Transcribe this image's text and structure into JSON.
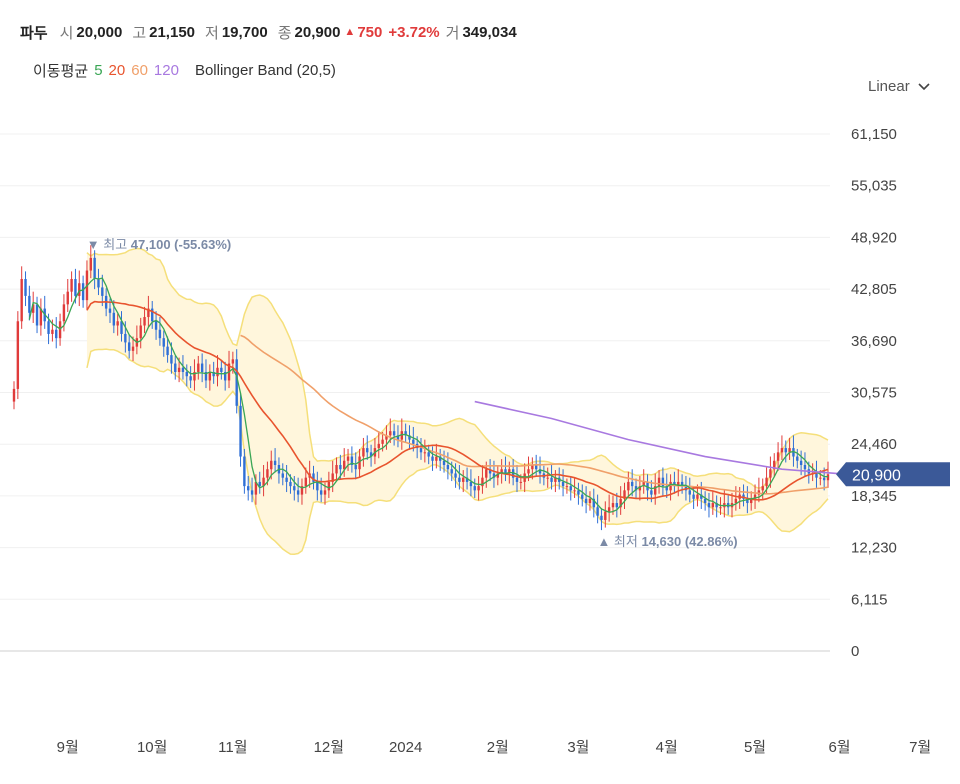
{
  "header": {
    "name": "파두",
    "open_label": "시",
    "open": "20,000",
    "high_label": "고",
    "high": "21,150",
    "low_label": "저",
    "low": "19,700",
    "close_label": "종",
    "close": "20,900",
    "change": "750",
    "change_pct": "+3.72%",
    "volume_label": "거",
    "volume": "349,034"
  },
  "legend": {
    "ma_label": "이동평균",
    "ma5": "5",
    "ma20": "20",
    "ma60": "60",
    "ma120": "120",
    "bollinger": "Bollinger Band (20,5)"
  },
  "scale_selector": "Linear",
  "colors": {
    "up": "#e03b3b",
    "down": "#2f6fd6",
    "ma5": "#3aa655",
    "ma20": "#e8542e",
    "ma60": "#f0a06a",
    "ma120": "#a879e0",
    "band_fill": "#fff6dc",
    "band_line": "#f5df7a",
    "price_badge": "#3b5998"
  },
  "chart_data": {
    "type": "line",
    "y_ticks": [
      "61,150",
      "55,035",
      "48,920",
      "42,805",
      "36,690",
      "30,575",
      "24,460",
      "18,345",
      "12,230",
      "6,115",
      "0"
    ],
    "y_tick_values": [
      61150,
      55035,
      48920,
      42805,
      36690,
      30575,
      24460,
      18345,
      12230,
      6115,
      0
    ],
    "x_ticks": [
      "9월",
      "10월",
      "11월",
      "12월",
      "2024",
      "2월",
      "3월",
      "4월",
      "5월",
      "6월",
      "7월"
    ],
    "x_tick_index": [
      14,
      36,
      57,
      82,
      102,
      126,
      147,
      170,
      193,
      215,
      236
    ],
    "ylim": [
      0,
      61150
    ],
    "last_price": "20,900",
    "annotations": [
      {
        "text_prefix": "최고",
        "value": "47,100",
        "pct": "(-55.63%)"
      },
      {
        "text_prefix": "최저",
        "value": "14,630",
        "pct": "(42.86%)"
      }
    ],
    "close_approx": [
      31000,
      39000,
      44000,
      42000,
      40000,
      41000,
      38500,
      40500,
      39000,
      37500,
      38000,
      37000,
      39000,
      41000,
      42500,
      44000,
      42000,
      43500,
      41500,
      45000,
      46500,
      44000,
      43000,
      42000,
      40500,
      40000,
      38500,
      39000,
      37500,
      36500,
      35500,
      36000,
      37000,
      38500,
      39500,
      40500,
      39000,
      38000,
      37000,
      36000,
      35000,
      34000,
      33000,
      33500,
      33000,
      32500,
      32000,
      33000,
      34000,
      33000,
      32000,
      33000,
      32500,
      33500,
      33000,
      32000,
      34000,
      34500,
      29000,
      23000,
      19500,
      19000,
      18500,
      20000,
      19500,
      20500,
      21500,
      22500,
      22000,
      21000,
      20500,
      20000,
      19500,
      19000,
      18500,
      19500,
      20500,
      21000,
      20000,
      19000,
      18500,
      19000,
      20000,
      21000,
      22000,
      21500,
      22500,
      23000,
      22000,
      21500,
      23000,
      24000,
      23500,
      23000,
      24000,
      24500,
      25000,
      25500,
      26000,
      25500,
      25000,
      26000,
      25500,
      25000,
      24500,
      24000,
      23500,
      23500,
      23000,
      22500,
      23000,
      22500,
      22000,
      21500,
      21000,
      20500,
      20000,
      20500,
      20000,
      19500,
      19000,
      19500,
      20500,
      21500,
      21000,
      20500,
      21000,
      21500,
      21000,
      21500,
      20500,
      20000,
      20000,
      21000,
      21500,
      22000,
      21500,
      21000,
      20500,
      20500,
      20000,
      20500,
      20000,
      19500,
      19500,
      19000,
      19000,
      18500,
      18000,
      17500,
      18000,
      17000,
      16000,
      15500,
      16500,
      17000,
      17500,
      17000,
      18000,
      19000,
      20000,
      19500,
      19000,
      19500,
      20000,
      19000,
      18500,
      19500,
      20500,
      19500,
      19000,
      20000,
      19500,
      20000,
      19500,
      19000,
      18500,
      18000,
      18500,
      18000,
      17500,
      17000,
      17500,
      17000,
      17000,
      17500,
      17000,
      17500,
      18000,
      18500,
      18000,
      17500,
      18000,
      18500,
      19000,
      19500,
      20500,
      21500,
      22500,
      23500,
      24000,
      23500,
      24000,
      23000,
      22500,
      22000,
      21500,
      21000,
      21000,
      20500,
      20500,
      20200,
      20900
    ],
    "ma120_approx": [
      {
        "i": 120,
        "v": 29500
      },
      {
        "i": 140,
        "v": 27500
      },
      {
        "i": 160,
        "v": 25000
      },
      {
        "i": 180,
        "v": 23000
      },
      {
        "i": 200,
        "v": 21500
      },
      {
        "i": 220,
        "v": 20800
      },
      {
        "i": 240,
        "v": 20400
      }
    ]
  }
}
